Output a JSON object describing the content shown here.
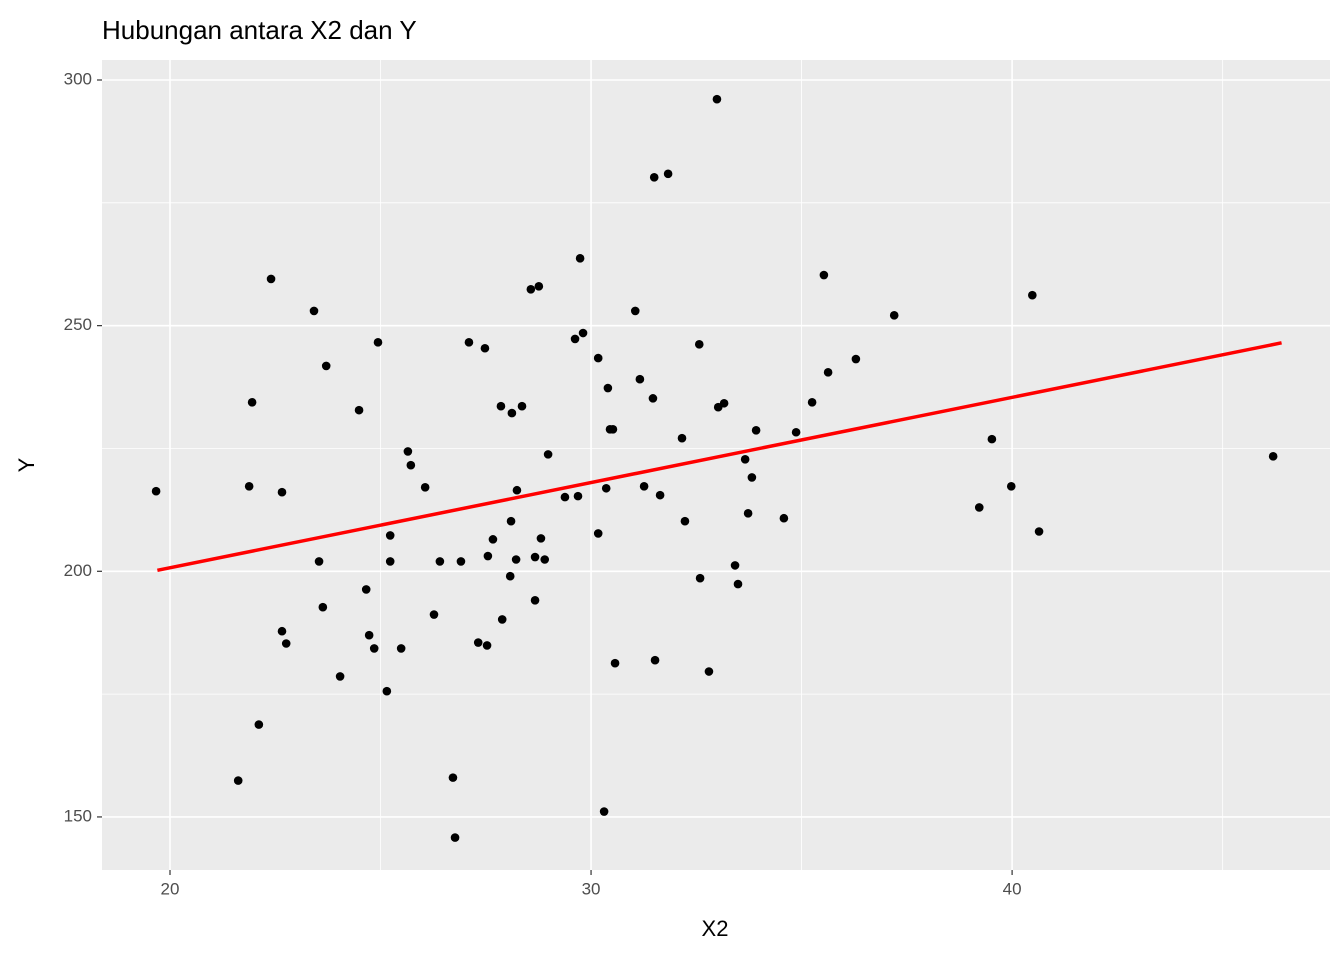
{
  "chart_data": {
    "type": "scatter",
    "title": "Hubungan antara X2 dan Y",
    "x_label": "X2",
    "y_label": "Y",
    "x": [
      19.67,
      21.62,
      21.88,
      21.95,
      22.11,
      22.4,
      22.66,
      22.66,
      22.76,
      23.42,
      23.54,
      23.63,
      23.71,
      24.04,
      24.49,
      24.66,
      24.73,
      24.85,
      24.94,
      25.15,
      25.23,
      25.23,
      25.49,
      25.65,
      25.72,
      26.06,
      26.27,
      26.41,
      26.72,
      26.77,
      26.91,
      27.1,
      27.32,
      27.48,
      27.53,
      27.55,
      27.67,
      27.86,
      27.89,
      28.08,
      28.1,
      28.12,
      28.24,
      28.22,
      28.36,
      28.57,
      28.67,
      28.67,
      28.76,
      28.81,
      28.9,
      28.98,
      29.38,
      29.62,
      29.69,
      29.74,
      29.81,
      30.17,
      30.17,
      30.31,
      30.36,
      30.4,
      30.45,
      30.52,
      30.57,
      31.05,
      31.16,
      31.26,
      31.47,
      31.5,
      31.52,
      31.64,
      31.83,
      32.16,
      32.23,
      32.57,
      32.59,
      32.8,
      32.99,
      33.02,
      33.16,
      33.42,
      33.49,
      33.66,
      33.73,
      33.82,
      33.92,
      34.58,
      34.87,
      35.25,
      35.53,
      35.63,
      36.29,
      37.2,
      39.22,
      39.52,
      39.98,
      40.48,
      40.64,
      46.2
    ],
    "y": [
      216.3,
      157.4,
      217.3,
      234.4,
      168.8,
      259.5,
      216.1,
      187.8,
      185.3,
      253.0,
      202.0,
      192.7,
      241.8,
      178.6,
      232.8,
      196.3,
      187.0,
      184.3,
      246.6,
      175.6,
      207.3,
      202.0,
      184.3,
      224.4,
      221.6,
      217.1,
      191.2,
      202.0,
      158.0,
      145.8,
      202.0,
      246.6,
      185.5,
      245.4,
      184.9,
      203.1,
      206.5,
      233.6,
      190.2,
      199.0,
      210.2,
      232.2,
      216.5,
      202.4,
      233.6,
      257.4,
      202.9,
      194.1,
      258.0,
      206.7,
      202.4,
      223.8,
      215.1,
      247.3,
      215.3,
      263.7,
      248.5,
      243.4,
      207.7,
      151.1,
      216.9,
      237.3,
      228.9,
      228.9,
      181.3,
      253.0,
      239.1,
      217.3,
      235.2,
      280.2,
      181.9,
      215.5,
      280.9,
      227.1,
      210.2,
      246.2,
      198.6,
      179.6,
      296.1,
      233.4,
      234.2,
      201.2,
      197.4,
      222.8,
      211.8,
      219.1,
      228.7,
      210.8,
      228.3,
      234.4,
      260.3,
      240.5,
      243.2,
      252.1,
      213.0,
      226.9,
      217.3,
      256.2,
      208.1,
      223.4
    ],
    "color": "#000000",
    "fit_line": {
      "x": [
        19.7,
        46.4
      ],
      "y": [
        200.2,
        246.5
      ],
      "color": "#ff0000"
    },
    "xlim": [
      18.385,
      47.55
    ],
    "ylim": [
      139.2,
      304.07
    ],
    "xticks": [
      20,
      30,
      40
    ],
    "yticks": [
      150,
      200,
      250,
      300
    ],
    "minor_xticks": [
      25,
      35,
      45
    ],
    "minor_yticks": [
      175,
      225,
      275
    ],
    "grid": true
  }
}
